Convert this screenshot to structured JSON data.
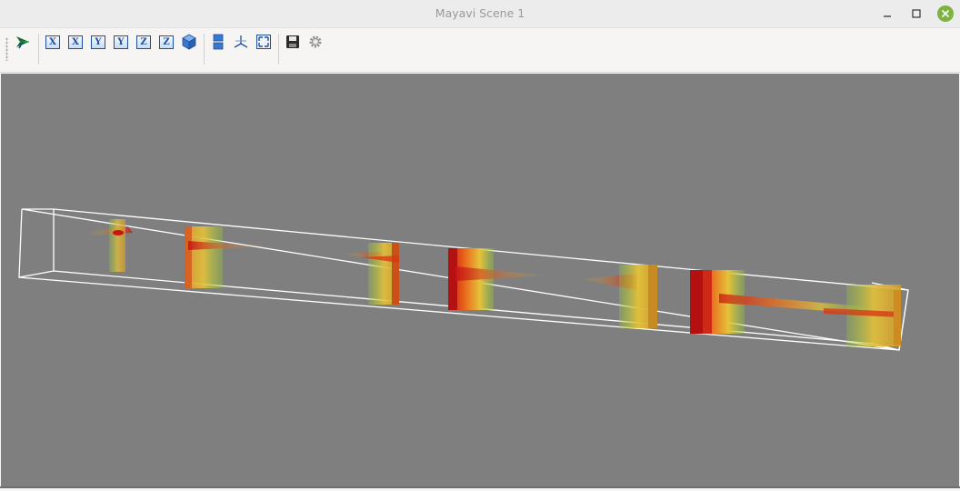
{
  "window": {
    "title": "Mayavi Scene 1",
    "controls": [
      "minimize",
      "maximize",
      "close"
    ],
    "close_color": "#7fb341"
  },
  "toolbar": {
    "buttons": [
      {
        "name": "mayavi-pipeline-icon"
      },
      {
        "name": "view-x-plus",
        "label": "X"
      },
      {
        "name": "view-x-minus",
        "label": "X"
      },
      {
        "name": "view-y-plus",
        "label": "Y"
      },
      {
        "name": "view-y-minus",
        "label": "Y"
      },
      {
        "name": "view-z-plus",
        "label": "Z"
      },
      {
        "name": "view-z-minus",
        "label": "Z"
      },
      {
        "name": "isometric-view-icon"
      },
      {
        "name": "toggle-parallel-projection-icon"
      },
      {
        "name": "toggle-axes-indicator-icon"
      },
      {
        "name": "full-screen-icon"
      },
      {
        "name": "save-snapshot-icon"
      },
      {
        "name": "configure-scene-icon"
      }
    ]
  },
  "scene": {
    "background": "#7f7f7f",
    "outline_color": "#ffffff",
    "colormap": [
      "#c81414",
      "#e8641a",
      "#e6c23a",
      "#9acd32"
    ]
  }
}
